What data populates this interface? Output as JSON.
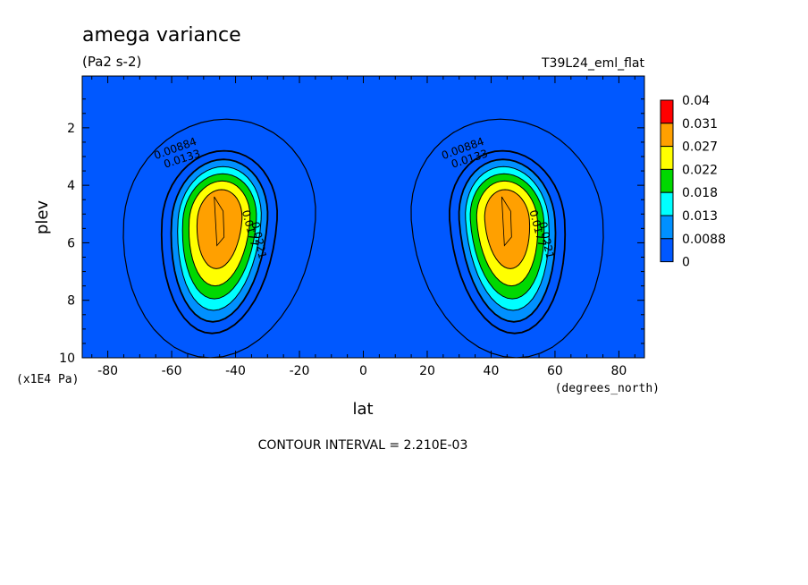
{
  "chart_data": {
    "type": "heatmap",
    "title": "amega variance",
    "units": "(Pa2 s-2)",
    "run_label": "T39L24_eml_flat",
    "xlabel": "lat",
    "xunits": "(degrees_north)",
    "ylabel": "plev",
    "yunits": "(x1E4 Pa)",
    "xlim": [
      -88,
      88
    ],
    "ylim": [
      10,
      0.2
    ],
    "x_ticks": [
      -80,
      -60,
      -40,
      -20,
      0,
      20,
      40,
      60,
      80
    ],
    "y_ticks": [
      2,
      4,
      6,
      8,
      10
    ],
    "footer": "CONTOUR INTERVAL = 2.210E-03",
    "colorbar": {
      "labels": [
        "0.04",
        "0.031",
        "0.027",
        "0.022",
        "0.018",
        "0.013",
        "0.0088",
        "0"
      ],
      "colors": [
        "#ff0000",
        "#ffa000",
        "#ffff00",
        "#00d800",
        "#00ffff",
        "#0090ff",
        "#0058ff"
      ]
    },
    "background_color": "#0058ff",
    "peaks": [
      {
        "lat": -45,
        "plev": 5.2,
        "value": 0.031
      },
      {
        "lat": 45,
        "plev": 5.2,
        "value": 0.031
      }
    ],
    "contour_labels": [
      "0.00884",
      "0.0133",
      "0.0177",
      "0.0221"
    ]
  }
}
